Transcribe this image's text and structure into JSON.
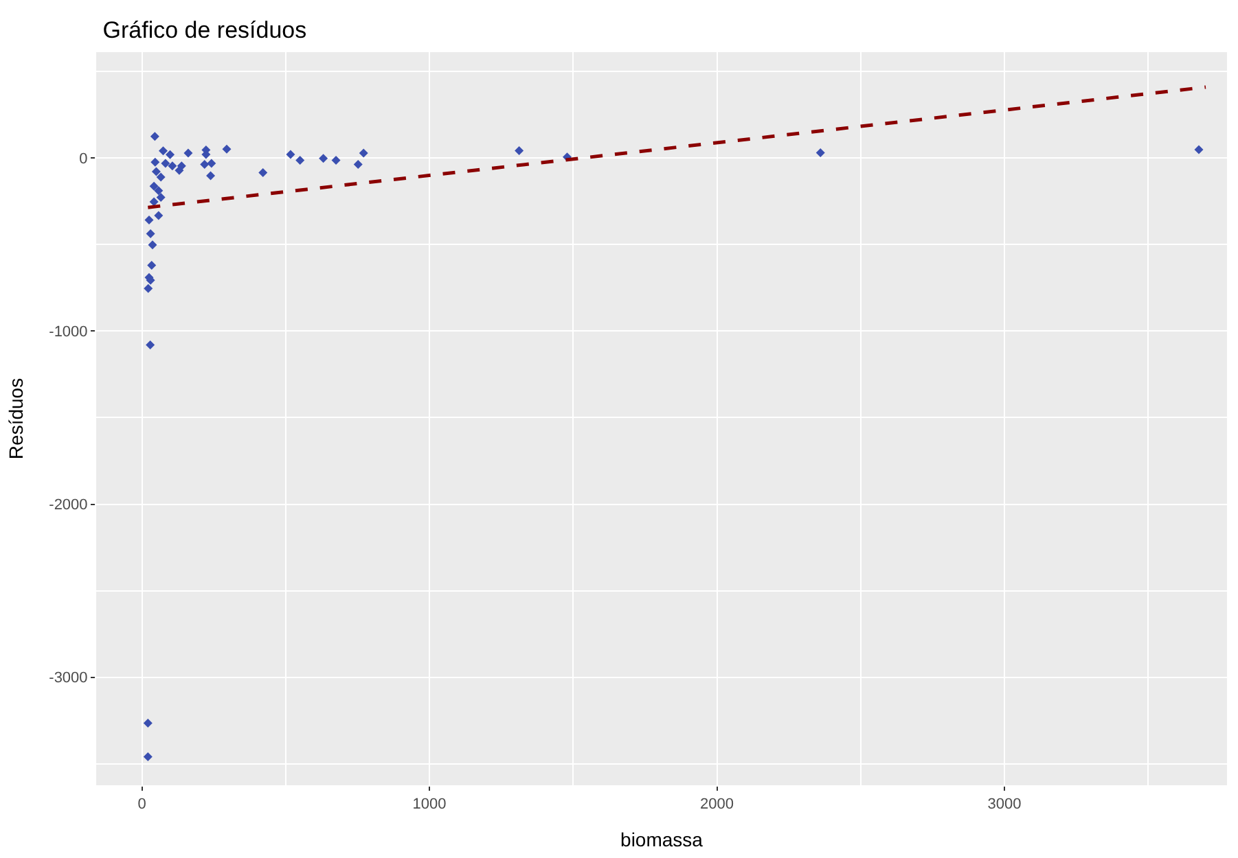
{
  "chart_data": {
    "type": "scatter",
    "title": "Gráfico de resíduos",
    "xlabel": "biomassa",
    "ylabel": "Resíduos",
    "xlim": [
      -159,
      3774
    ],
    "ylim": [
      -3624,
      612
    ],
    "xticks": [
      0,
      1000,
      2000,
      3000
    ],
    "yticks": [
      -3000,
      -2000,
      -1000,
      0
    ],
    "grid": true,
    "marker": "diamond",
    "series": [
      {
        "color": "#3a4fb0",
        "x": [
          45,
          74,
          98,
          82,
          106,
          138,
          161,
          130,
          46,
          50,
          66,
          42,
          58,
          66,
          42,
          58,
          25,
          30,
          37,
          34,
          25,
          30,
          22,
          29,
          223,
          223,
          218,
          242,
          239,
          295,
          421,
          517,
          550,
          631,
          675,
          752,
          771,
          1312,
          1479,
          2360,
          3676,
          21,
          21
        ],
        "values": [
          125,
          42,
          20,
          -31,
          -45,
          -45,
          29,
          -71,
          -24,
          -78,
          -110,
          -162,
          -188,
          -227,
          -253,
          -332,
          -358,
          -437,
          -502,
          -620,
          -690,
          -706,
          -753,
          -1080,
          47,
          21,
          -37,
          -31,
          -102,
          52,
          -84,
          21,
          -13,
          -2,
          -13,
          -37,
          29,
          43,
          6,
          31,
          49,
          -3265,
          -3459
        ]
      },
      {
        "type": "line",
        "color": "#8b0000",
        "marker": "none",
        "line_style": "dashed",
        "x": [
          21,
          3700
        ],
        "values": [
          -285,
          410
        ]
      }
    ]
  }
}
